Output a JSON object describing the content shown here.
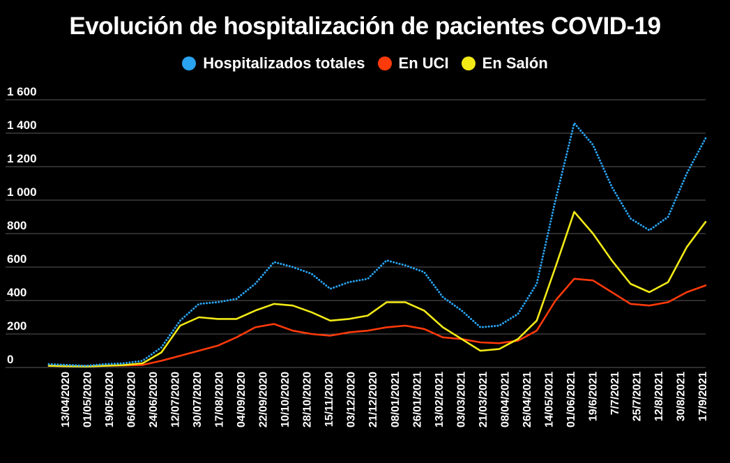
{
  "chart_data": {
    "type": "line",
    "title": "Evolución de hospitalización de pacientes COVID-19",
    "xlabel": "",
    "ylabel": "",
    "ylim": [
      0,
      1600
    ],
    "y_ticks": [
      0,
      200,
      400,
      600,
      800,
      1000,
      1200,
      1400,
      1600
    ],
    "y_tick_labels": [
      "0",
      "200",
      "400",
      "600",
      "800",
      "1 000",
      "1 200",
      "1 400",
      "1 600"
    ],
    "x_tick_labels": [
      "13/04/2020",
      "01/05/2020",
      "19/05/2020",
      "06/06/2020",
      "24/06/2020",
      "12/07/2020",
      "30/07/2020",
      "17/08/2020",
      "04/09/2020",
      "22/09/2020",
      "10/10/2020",
      "28/10/2020",
      "15/11/2020",
      "03/12/2020",
      "21/12/2020",
      "08/01/2021",
      "26/01/2021",
      "13/02/2021",
      "03/03/2021",
      "21/03/2021",
      "08/04/2021",
      "26/04/2021",
      "14/05/2021",
      "01/06/2021",
      "19/6/2021",
      "7/7/2021",
      "25/7/2021",
      "12/8/2021",
      "30/8/2021",
      "17/9/2021"
    ],
    "grid": true,
    "legend_position": "top-center",
    "series": [
      {
        "name": "Hospitalizados totales",
        "color": "#2aa3f0",
        "style": "dotted",
        "values": [
          20,
          15,
          10,
          20,
          25,
          40,
          120,
          280,
          380,
          390,
          410,
          500,
          630,
          600,
          560,
          470,
          510,
          530,
          640,
          610,
          570,
          420,
          340,
          240,
          250,
          320,
          500,
          1000,
          1460,
          1330,
          1080,
          890,
          820,
          900,
          1160,
          1370
        ]
      },
      {
        "name": "En UCI",
        "color": "#ff3a0a",
        "style": "solid",
        "values": [
          10,
          8,
          8,
          10,
          12,
          15,
          40,
          70,
          100,
          130,
          180,
          240,
          260,
          220,
          200,
          190,
          210,
          220,
          240,
          250,
          230,
          180,
          170,
          150,
          145,
          160,
          220,
          400,
          530,
          520,
          450,
          380,
          370,
          390,
          450,
          490
        ]
      },
      {
        "name": "En Salón",
        "color": "#f2ea17",
        "style": "solid",
        "values": [
          10,
          8,
          6,
          10,
          14,
          25,
          90,
          250,
          300,
          290,
          290,
          340,
          380,
          370,
          330,
          280,
          290,
          310,
          390,
          390,
          340,
          240,
          170,
          100,
          110,
          170,
          280,
          600,
          930,
          800,
          640,
          500,
          450,
          510,
          720,
          870
        ]
      }
    ]
  }
}
